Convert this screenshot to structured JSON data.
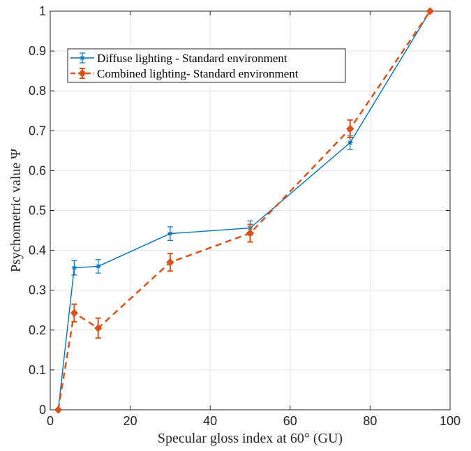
{
  "chart_data": {
    "type": "line",
    "xlabel": "Specular gloss index at 60° (GU)",
    "ylabel": "Psychometric value Ψ",
    "xlim": [
      0,
      100
    ],
    "ylim": [
      0,
      1
    ],
    "xticks": [
      0,
      20,
      40,
      60,
      80,
      100
    ],
    "yticks": [
      0,
      0.1,
      0.2,
      0.3,
      0.4,
      0.5,
      0.6,
      0.7,
      0.8,
      0.9,
      1
    ],
    "grid": true,
    "legend_position": "top-left",
    "series": [
      {
        "name": "Diffuse lighting - Standard environment",
        "color": "#0072BD",
        "line_style": "solid",
        "marker": "asterisk",
        "x": [
          2,
          6,
          12,
          30,
          50,
          75,
          95
        ],
        "y": [
          0.0,
          0.356,
          0.36,
          0.442,
          0.456,
          0.67,
          1.0
        ],
        "err": [
          0,
          0.018,
          0.017,
          0.017,
          0.018,
          0.017,
          0
        ]
      },
      {
        "name": "Combined lighting- Standard environment",
        "color": "#D95319",
        "line_style": "dashed",
        "marker": "diamond",
        "x": [
          2,
          6,
          12,
          30,
          50,
          75,
          95
        ],
        "y": [
          0.0,
          0.243,
          0.205,
          0.37,
          0.443,
          0.705,
          1.0
        ],
        "err": [
          0,
          0.022,
          0.025,
          0.022,
          0.022,
          0.022,
          0
        ]
      }
    ]
  }
}
